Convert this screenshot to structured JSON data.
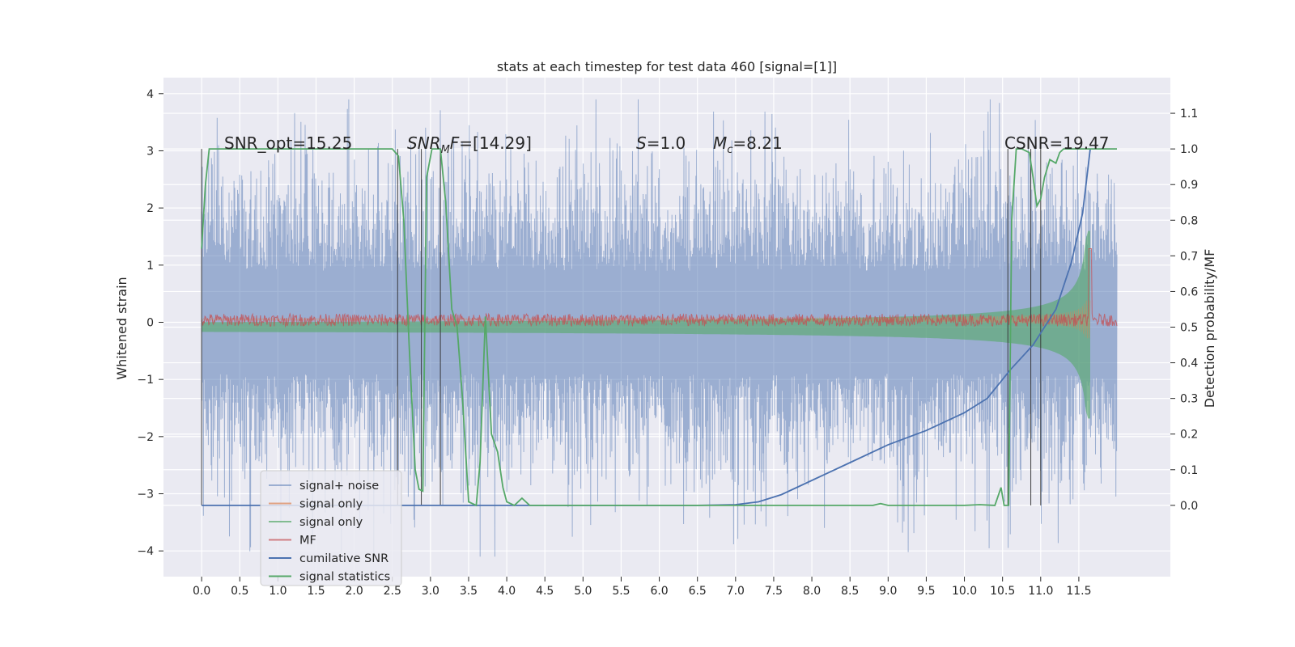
{
  "chart_data": {
    "type": "line",
    "title": "stats at each timestep for test data 460 [signal=[1]]",
    "ylabel_left": "Whitened strain",
    "ylabel_right": "Detection probability/MF",
    "xlabel": "",
    "xlim": [
      -0.5,
      12.7
    ],
    "ylim_left": [
      -4.45,
      4.28
    ],
    "ylim_right": [
      -0.2,
      1.2
    ],
    "xticks": [
      "0.0",
      "0.5",
      "1.0",
      "1.5",
      "2.0",
      "2.5",
      "3.0",
      "3.5",
      "4.0",
      "4.5",
      "5.0",
      "5.5",
      "6.0",
      "6.5",
      "7.0",
      "7.5",
      "8.0",
      "8.5",
      "9.0",
      "9.5",
      "10.0",
      "10.5",
      "11.0",
      "11.5"
    ],
    "yticks_left": [
      "4",
      "3",
      "2",
      "1",
      "0",
      "−1",
      "−2",
      "−3",
      "−4"
    ],
    "yticks_right": [
      "1.1",
      "1.0",
      "0.9",
      "0.8",
      "0.7",
      "0.6",
      "0.5",
      "0.4",
      "0.3",
      "0.2",
      "0.1",
      "0.0"
    ],
    "grid": true,
    "legend_position": "lower-left",
    "annotations": [
      {
        "text": "SNR_opt=15.25",
        "x": 0.2
      },
      {
        "text": "SNR_MF=[14.29]",
        "x": 2.6
      },
      {
        "text": "S=1.0",
        "x": 5.6
      },
      {
        "text": "M_c=8.21",
        "x": 6.6
      },
      {
        "text": "CSNR=19.47",
        "x": 10.4
      }
    ],
    "vertical_markers": [
      0.0,
      2.57,
      2.88,
      3.13,
      10.57,
      10.87,
      11.0
    ],
    "series": [
      {
        "name": "signal+ noise",
        "axis": "left",
        "color": "#4c72b0",
        "description_range": {
          "x": [
            0,
            12
          ],
          "y_min": -4.1,
          "y_max": 3.9,
          "typical_amplitude": 2.2
        }
      },
      {
        "name": "signal only",
        "axis": "left",
        "color": "#dd8452",
        "description_range": {
          "x": [
            0,
            11.65
          ],
          "envelope_start": 0.05,
          "envelope_end": 0.55
        }
      },
      {
        "name": "signal only",
        "axis": "right",
        "color": "#55a868",
        "description_range": {
          "x": [
            0,
            11.65
          ],
          "envelope_start": 0.0,
          "envelope_end": 0.77
        }
      },
      {
        "name": "MF",
        "axis": "right",
        "color": "#c44e52",
        "description_range": {
          "x": [
            0,
            12
          ],
          "level": 0.52
        }
      },
      {
        "name": "cumilative SNR",
        "axis": "right",
        "color": "#4c72b0",
        "points": [
          [
            0,
            0
          ],
          [
            6.5,
            0
          ],
          [
            7.0,
            0.002
          ],
          [
            7.3,
            0.01
          ],
          [
            7.6,
            0.03
          ],
          [
            8.0,
            0.07
          ],
          [
            8.5,
            0.12
          ],
          [
            9.0,
            0.17
          ],
          [
            9.5,
            0.21
          ],
          [
            10.0,
            0.26
          ],
          [
            10.3,
            0.3
          ],
          [
            10.6,
            0.38
          ],
          [
            10.9,
            0.45
          ],
          [
            11.2,
            0.55
          ],
          [
            11.4,
            0.68
          ],
          [
            11.55,
            0.82
          ],
          [
            11.65,
            1.0
          ]
        ]
      },
      {
        "name": "signal statistics",
        "axis": "right",
        "color": "#55a868",
        "points": [
          [
            0,
            0.72
          ],
          [
            0.05,
            0.9
          ],
          [
            0.1,
            1.0
          ],
          [
            0.5,
            1.0
          ],
          [
            1.0,
            1.0
          ],
          [
            2.0,
            1.0
          ],
          [
            2.5,
            1.0
          ],
          [
            2.58,
            0.98
          ],
          [
            2.65,
            0.8
          ],
          [
            2.72,
            0.45
          ],
          [
            2.8,
            0.1
          ],
          [
            2.85,
            0.045
          ],
          [
            2.9,
            0.04
          ],
          [
            2.95,
            0.92
          ],
          [
            3.02,
            1.0
          ],
          [
            3.13,
            1.0
          ],
          [
            3.2,
            0.85
          ],
          [
            3.28,
            0.55
          ],
          [
            3.35,
            0.5
          ],
          [
            3.42,
            0.3
          ],
          [
            3.5,
            0.01
          ],
          [
            3.6,
            0.0
          ],
          [
            3.65,
            0.12
          ],
          [
            3.72,
            0.53
          ],
          [
            3.8,
            0.2
          ],
          [
            3.88,
            0.15
          ],
          [
            3.95,
            0.05
          ],
          [
            4.0,
            0.01
          ],
          [
            4.1,
            0.0
          ],
          [
            4.2,
            0.02
          ],
          [
            4.3,
            0.0
          ],
          [
            4.5,
            0.0
          ],
          [
            5.0,
            0.0
          ],
          [
            6.0,
            0.0
          ],
          [
            7.0,
            0.0
          ],
          [
            8.0,
            0.0
          ],
          [
            8.8,
            0.0
          ],
          [
            8.9,
            0.005
          ],
          [
            9.0,
            0.0
          ],
          [
            10.0,
            0.0
          ],
          [
            10.2,
            0.002
          ],
          [
            10.4,
            0.0
          ],
          [
            10.48,
            0.05
          ],
          [
            10.52,
            0.0
          ],
          [
            10.58,
            0.0
          ],
          [
            10.62,
            0.8
          ],
          [
            10.68,
            1.0
          ],
          [
            10.75,
            1.0
          ],
          [
            10.85,
            0.99
          ],
          [
            10.9,
            0.92
          ],
          [
            10.95,
            0.84
          ],
          [
            11.0,
            0.86
          ],
          [
            11.05,
            0.92
          ],
          [
            11.12,
            0.97
          ],
          [
            11.2,
            0.96
          ],
          [
            11.25,
            0.99
          ],
          [
            11.3,
            1.0
          ],
          [
            11.5,
            1.0
          ],
          [
            12.0,
            1.0
          ]
        ]
      }
    ]
  },
  "legend": [
    {
      "label": "signal+ noise",
      "color": "#4c72b0",
      "alpha": 0.5
    },
    {
      "label": "signal only",
      "color": "#dd8452",
      "alpha": 0.7
    },
    {
      "label": "signal only",
      "color": "#55a868",
      "alpha": 0.7
    },
    {
      "label": "MF",
      "color": "#c44e52",
      "alpha": 0.7
    },
    {
      "label": "cumilative SNR",
      "color": "#4c72b0",
      "alpha": 1
    },
    {
      "label": "signal statistics",
      "color": "#55a868",
      "alpha": 1
    }
  ],
  "colors": {
    "axes_background": "#eaeaf2",
    "grid": "#ffffff",
    "text": "#262626",
    "marker_line": "#333333"
  }
}
